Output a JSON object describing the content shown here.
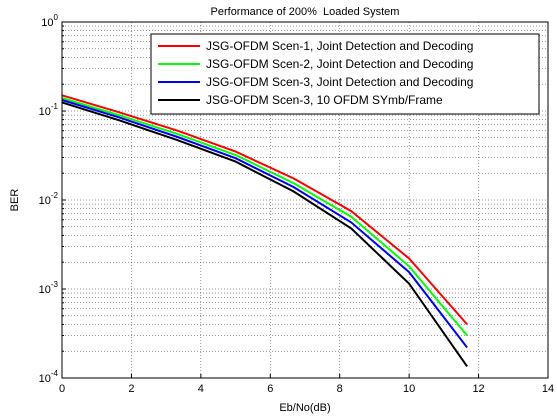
{
  "chart_data": {
    "type": "line",
    "title": "Performance of 200%  Loaded System",
    "xlabel": "Eb/No(dB)",
    "ylabel": "BER",
    "xlim": [
      0,
      14
    ],
    "ylim": [
      0.0001,
      1
    ],
    "yscale": "log",
    "grid": true,
    "legend_position": "top-right",
    "xticks": [
      "0",
      "2",
      "4",
      "6",
      "8",
      "10",
      "12",
      "14"
    ],
    "yticks": [
      {
        "base": "10",
        "exp": "0"
      },
      {
        "base": "10",
        "exp": "-1"
      },
      {
        "base": "10",
        "exp": "-2"
      },
      {
        "base": "10",
        "exp": "-3"
      },
      {
        "base": "10",
        "exp": "-4"
      }
    ],
    "x": [
      0,
      1.67,
      3.33,
      5,
      6.67,
      8.33,
      10,
      11.67
    ],
    "series": [
      {
        "name": "JSG-OFDM Scen-1, Joint Detection and Decoding",
        "color": "#ff0000",
        "values": [
          0.15,
          0.096,
          0.06,
          0.035,
          0.0175,
          0.0075,
          0.0022,
          0.0004
        ]
      },
      {
        "name": "JSG-OFDM Scen-2, Joint Detection and Decoding",
        "color": "#00ff00",
        "values": [
          0.14,
          0.089,
          0.055,
          0.032,
          0.0155,
          0.0065,
          0.0018,
          0.0003
        ]
      },
      {
        "name": "JSG-OFDM Scen-3, Joint Detection and Decoding",
        "color": "#0000ff",
        "values": [
          0.133,
          0.084,
          0.051,
          0.0295,
          0.014,
          0.0056,
          0.00155,
          0.00022
        ]
      },
      {
        "name": "JSG-OFDM Scen-3, 10 OFDM SYmb/Frame",
        "color": "#000000",
        "values": [
          0.125,
          0.078,
          0.047,
          0.027,
          0.0125,
          0.0048,
          0.00115,
          0.000135
        ]
      }
    ]
  }
}
